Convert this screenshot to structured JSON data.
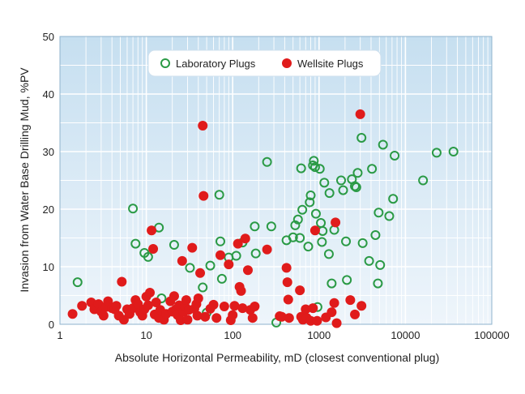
{
  "chart_data": {
    "type": "scatter",
    "title": "",
    "xlabel": "Absolute Horizontal Permeability, mD (closest conventional plug)",
    "ylabel": "Invasion from Water Base Drilling Mud, %PV",
    "xscale": "log",
    "xlim": [
      1,
      100000
    ],
    "ylim": [
      0,
      50
    ],
    "xticks": [
      "1",
      "10",
      "100",
      "1000",
      "10000",
      "100000"
    ],
    "yticks": [
      "0",
      "10",
      "20",
      "30",
      "40",
      "50"
    ],
    "grid": true,
    "legend_position": "top-center",
    "colors": {
      "laboratory": "#2a9a45",
      "wellsite": "#e01b1b",
      "plot_bg_top": "#c6dff0",
      "plot_bg_bottom": "#eef5fb",
      "grid": "#ffffff"
    },
    "series": [
      {
        "name": "Laboratory Plugs",
        "marker": "open-circle",
        "color": "#2a9a45",
        "points": [
          [
            1.6,
            7.3
          ],
          [
            7,
            20.1
          ],
          [
            7.5,
            14
          ],
          [
            9.5,
            12.4
          ],
          [
            10.5,
            11.7
          ],
          [
            14,
            16.8
          ],
          [
            15,
            4.5
          ],
          [
            21,
            13.8
          ],
          [
            32,
            9.8
          ],
          [
            45,
            6.4
          ],
          [
            50,
            2
          ],
          [
            55,
            10.2
          ],
          [
            70,
            22.5
          ],
          [
            72,
            14.4
          ],
          [
            75,
            7.9
          ],
          [
            90,
            11.6
          ],
          [
            110,
            11.9
          ],
          [
            130,
            14.2
          ],
          [
            180,
            17
          ],
          [
            185,
            12.3
          ],
          [
            250,
            28.2
          ],
          [
            280,
            17
          ],
          [
            320,
            0.3
          ],
          [
            420,
            14.6
          ],
          [
            500,
            15.1
          ],
          [
            530,
            17.2
          ],
          [
            570,
            18.2
          ],
          [
            600,
            15
          ],
          [
            620,
            27.1
          ],
          [
            640,
            19.9
          ],
          [
            750,
            13.5
          ],
          [
            780,
            21.2
          ],
          [
            800,
            22.4
          ],
          [
            850,
            27.6
          ],
          [
            870,
            28.4
          ],
          [
            900,
            27.3
          ],
          [
            920,
            19.2
          ],
          [
            960,
            3
          ],
          [
            1020,
            27
          ],
          [
            1050,
            17.6
          ],
          [
            1080,
            14.3
          ],
          [
            1100,
            16.2
          ],
          [
            1150,
            24.6
          ],
          [
            1300,
            12.2
          ],
          [
            1320,
            22.8
          ],
          [
            1400,
            7.1
          ],
          [
            1500,
            16.4
          ],
          [
            1800,
            25
          ],
          [
            1900,
            23.3
          ],
          [
            2050,
            14.4
          ],
          [
            2100,
            7.7
          ],
          [
            2400,
            25.2
          ],
          [
            2600,
            24
          ],
          [
            2700,
            23.8
          ],
          [
            2800,
            26.3
          ],
          [
            3100,
            32.4
          ],
          [
            3200,
            14.1
          ],
          [
            3800,
            11
          ],
          [
            4100,
            27
          ],
          [
            4500,
            15.5
          ],
          [
            4800,
            7.1
          ],
          [
            4900,
            19.4
          ],
          [
            5100,
            10.3
          ],
          [
            5500,
            31.2
          ],
          [
            6500,
            18.8
          ],
          [
            7200,
            21.8
          ],
          [
            7500,
            29.3
          ],
          [
            16000,
            25
          ],
          [
            23000,
            29.8
          ],
          [
            36000,
            30
          ]
        ]
      },
      {
        "name": "Wellsite Plugs",
        "marker": "filled-circle",
        "color": "#e01b1b",
        "points": [
          [
            1.4,
            1.8
          ],
          [
            1.8,
            3.2
          ],
          [
            2.3,
            3.8
          ],
          [
            2.5,
            2.6
          ],
          [
            2.8,
            3.5
          ],
          [
            3,
            2.2
          ],
          [
            3.2,
            1.5
          ],
          [
            3.4,
            3
          ],
          [
            3.6,
            4
          ],
          [
            4,
            2.8
          ],
          [
            4.3,
            2.6
          ],
          [
            4.5,
            3.2
          ],
          [
            4.8,
            1.5
          ],
          [
            5.2,
            7.4
          ],
          [
            5.5,
            0.8
          ],
          [
            6,
            2.6
          ],
          [
            6.4,
            1.8
          ],
          [
            7,
            2.8
          ],
          [
            7.5,
            4.2
          ],
          [
            8,
            3.5
          ],
          [
            8.5,
            2.1
          ],
          [
            9,
            1.5
          ],
          [
            9.5,
            2.6
          ],
          [
            10,
            4.8
          ],
          [
            10.5,
            3.3
          ],
          [
            11,
            5.5
          ],
          [
            11.5,
            16.3
          ],
          [
            12,
            13.1
          ],
          [
            12.5,
            1.7
          ],
          [
            13,
            3.8
          ],
          [
            14,
            1.1
          ],
          [
            14.5,
            2.5
          ],
          [
            16,
            0.8
          ],
          [
            17,
            1.8
          ],
          [
            19,
            4
          ],
          [
            20,
            2.2
          ],
          [
            21,
            4.9
          ],
          [
            22,
            2.6
          ],
          [
            23,
            1.6
          ],
          [
            24,
            3.3
          ],
          [
            25,
            0.7
          ],
          [
            26,
            11
          ],
          [
            27,
            2.2
          ],
          [
            28,
            3.1
          ],
          [
            29,
            4.2
          ],
          [
            30,
            0.8
          ],
          [
            31,
            2.5
          ],
          [
            34,
            13.3
          ],
          [
            36,
            2.7
          ],
          [
            38,
            3.5
          ],
          [
            39,
            1.5
          ],
          [
            40,
            4.5
          ],
          [
            42,
            8.9
          ],
          [
            45,
            34.5
          ],
          [
            46,
            22.3
          ],
          [
            48,
            1.3
          ],
          [
            55,
            2.7
          ],
          [
            60,
            3.4
          ],
          [
            65,
            1.1
          ],
          [
            72,
            12
          ],
          [
            80,
            3.1
          ],
          [
            90,
            10.4
          ],
          [
            95,
            0.7
          ],
          [
            100,
            1.6
          ],
          [
            105,
            3.2
          ],
          [
            115,
            14
          ],
          [
            120,
            6.5
          ],
          [
            125,
            5.8
          ],
          [
            130,
            2.8
          ],
          [
            140,
            14.9
          ],
          [
            150,
            9.4
          ],
          [
            160,
            2.5
          ],
          [
            170,
            1.1
          ],
          [
            180,
            3.1
          ],
          [
            250,
            13
          ],
          [
            350,
            1.4
          ],
          [
            370,
            1.3
          ],
          [
            420,
            9.8
          ],
          [
            430,
            7.3
          ],
          [
            440,
            4.3
          ],
          [
            450,
            1.1
          ],
          [
            600,
            5.9
          ],
          [
            620,
            1.3
          ],
          [
            650,
            0.8
          ],
          [
            700,
            2.6
          ],
          [
            720,
            1.1
          ],
          [
            800,
            0.6
          ],
          [
            850,
            2.8
          ],
          [
            900,
            16.3
          ],
          [
            950,
            0.6
          ],
          [
            1200,
            1.2
          ],
          [
            1400,
            2.1
          ],
          [
            1500,
            3.7
          ],
          [
            1550,
            17.7
          ],
          [
            1600,
            0.2
          ],
          [
            2300,
            4.2
          ],
          [
            2600,
            1.7
          ],
          [
            3000,
            36.5
          ],
          [
            3100,
            3.2
          ]
        ]
      }
    ]
  }
}
